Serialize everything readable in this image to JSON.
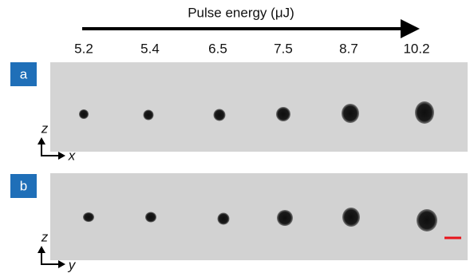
{
  "header": {
    "title": "Pulse energy (μJ)",
    "energies": [
      "5.2",
      "5.4",
      "6.5",
      "7.5",
      "8.7",
      "10.2"
    ]
  },
  "panels": [
    {
      "label": "a",
      "axis_vertical": "z",
      "axis_horizontal": "x"
    },
    {
      "label": "b",
      "axis_vertical": "z",
      "axis_horizontal": "y"
    }
  ]
}
